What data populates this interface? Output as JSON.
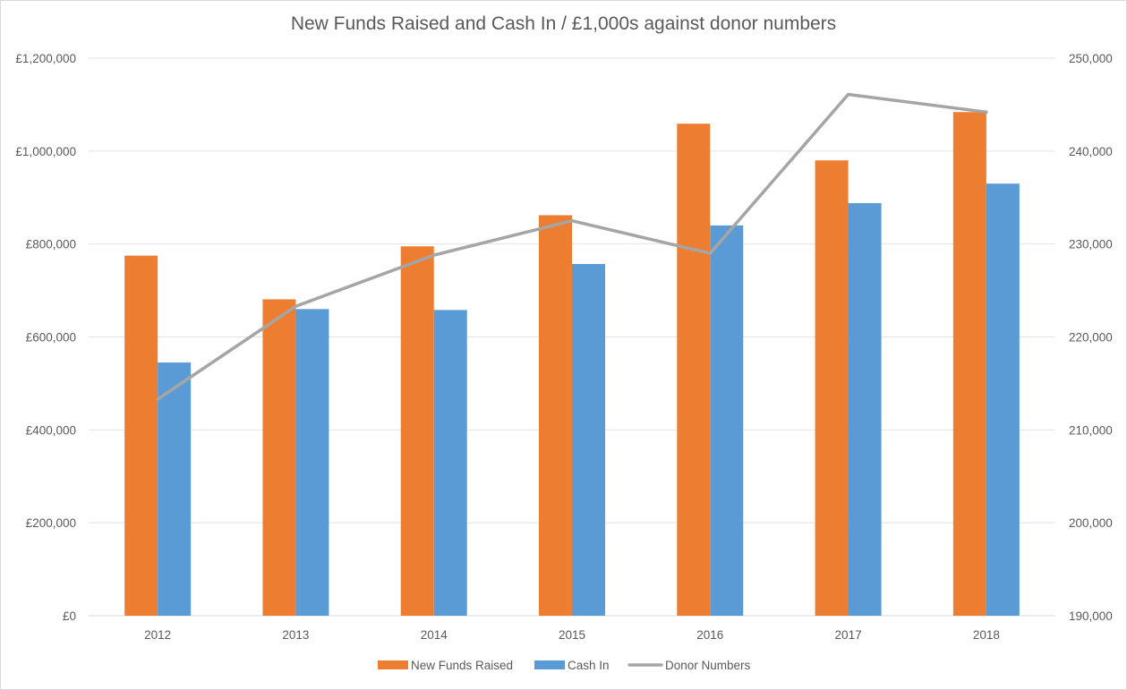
{
  "chart_data": {
    "type": "bar",
    "title": "New Funds Raised and Cash In / £1,000s against donor numbers",
    "categories": [
      "2012",
      "2013",
      "2014",
      "2015",
      "2016",
      "2017",
      "2018"
    ],
    "series": [
      {
        "name": "New Funds Raised",
        "type": "bar",
        "axis": "left",
        "color": "#ed7d31",
        "values": [
          775000,
          681000,
          795000,
          862000,
          1059000,
          980000,
          1084000
        ]
      },
      {
        "name": "Cash In",
        "type": "bar",
        "axis": "left",
        "color": "#5b9bd5",
        "values": [
          545000,
          660000,
          658000,
          757000,
          840000,
          888000,
          930000
        ]
      },
      {
        "name": "Donor Numbers",
        "type": "line",
        "axis": "right",
        "color": "#a5a5a5",
        "values": [
          213300,
          223300,
          228800,
          232500,
          229000,
          246100,
          244200
        ]
      }
    ],
    "y_left": {
      "min": 0,
      "max": 1200000,
      "ticks": [
        "£0",
        "£200,000",
        "£400,000",
        "£600,000",
        "£800,000",
        "£1,000,000",
        "£1,200,000"
      ]
    },
    "y_right": {
      "min": 190000,
      "max": 250000,
      "ticks": [
        "190,000",
        "200,000",
        "210,000",
        "220,000",
        "230,000",
        "240,000",
        "250,000"
      ]
    },
    "grid": true,
    "legend_position": "bottom"
  }
}
